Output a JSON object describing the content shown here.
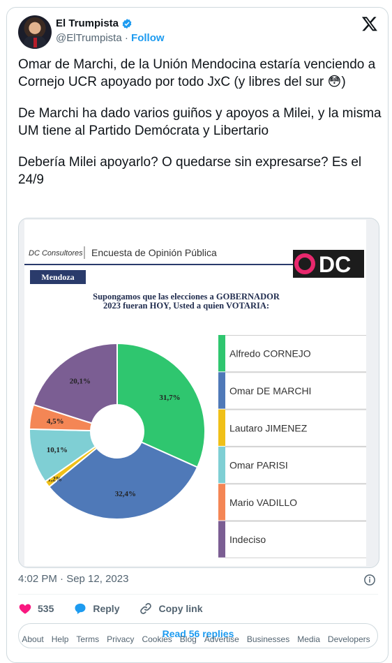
{
  "tweet": {
    "author_name": "El Trumpista",
    "author_handle": "@ElTrumpista",
    "separator": "·",
    "follow_label": "Follow",
    "paragraphs": [
      "Omar de Marchi, de la Unión Mendocina estaría venciendo a Cornejo UCR apoyado por todo JxC (y libres del sur 😳)",
      "De Marchi ha dado varios guiños y apoyos a Milei, y la misma UM tiene al Partido Demócrata y Libertario",
      "Debería Milei apoyarlo? O quedarse sin expresarse? Es el 24/9"
    ],
    "timestamp": "4:02 PM · Sep 12, 2023",
    "likes_count": "535",
    "reply_label": "Reply",
    "copy_link_label": "Copy link",
    "read_replies_label": "Read 56 replies"
  },
  "poll_image": {
    "brand": "DC Consultores",
    "header_title": "Encuesta de Opinión Pública",
    "logo_text": "DC",
    "region_tab": "Mendoza",
    "question_line1": "Supongamos que las elecciones a GOBERNADOR",
    "question_line2": "2023 fueran HOY, Usted a quien VOTARIA:"
  },
  "chart_data": {
    "type": "pie",
    "title": "Supongamos que las elecciones a GOBERNADOR 2023 fueran HOY, Usted a quien VOTARIA:",
    "donut": true,
    "legend_position": "right",
    "categories": [
      "Alfredo CORNEJO",
      "Omar DE MARCHI",
      "Lautaro JIMENEZ",
      "Omar PARISI",
      "Mario VADILLO",
      "Indeciso"
    ],
    "values": [
      31.7,
      32.4,
      1.2,
      10.1,
      4.5,
      20.1
    ],
    "labels": [
      "31,7%",
      "32,4%",
      "1,2%",
      "10,1%",
      "4,5%",
      "20,1%"
    ],
    "colors": [
      "#2fc66f",
      "#4f79b8",
      "#f0c018",
      "#7fcfd4",
      "#f48655",
      "#7b5e93"
    ]
  },
  "footer": {
    "links": [
      "About",
      "Help",
      "Terms",
      "Privacy",
      "Cookies",
      "Blog",
      "Advertise",
      "Businesses",
      "Media",
      "Developers"
    ]
  },
  "colors": {
    "accent": "#1d9bf0",
    "like": "#f91880",
    "text_secondary": "#536471"
  }
}
